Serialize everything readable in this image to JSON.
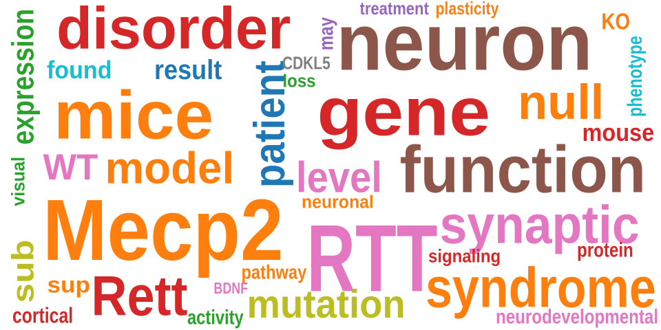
{
  "words": [
    {
      "id": "disorder",
      "text": "disorder",
      "color": "#d62728"
    },
    {
      "id": "neuron",
      "text": "neuron",
      "color": "#8c564b"
    },
    {
      "id": "mice",
      "text": "mice",
      "color": "#ff7f0e"
    },
    {
      "id": "gene",
      "text": "gene",
      "color": "#d62728"
    },
    {
      "id": "function",
      "text": "function",
      "color": "#8c564b"
    },
    {
      "id": "mecp2",
      "text": "Mecp2",
      "color": "#ff7f0e"
    },
    {
      "id": "rtt",
      "text": "RTT",
      "color": "#e377c2"
    },
    {
      "id": "synaptic",
      "text": "synaptic",
      "color": "#e377c2"
    },
    {
      "id": "syndrome",
      "text": "syndrome",
      "color": "#ff7f0e"
    },
    {
      "id": "rett",
      "text": "Rett",
      "color": "#d62728"
    },
    {
      "id": "mutation",
      "text": "mutation",
      "color": "#bcbd22"
    },
    {
      "id": "model",
      "text": "model",
      "color": "#ff7f0e"
    },
    {
      "id": "null",
      "text": "null",
      "color": "#ff7f0e"
    },
    {
      "id": "patient",
      "text": "patient",
      "color": "#1f77b4"
    },
    {
      "id": "level",
      "text": "level",
      "color": "#e377c2"
    },
    {
      "id": "wt",
      "text": "WT",
      "color": "#e377c2"
    },
    {
      "id": "expression",
      "text": "expression",
      "color": "#2ca02c"
    },
    {
      "id": "found",
      "text": "found",
      "color": "#17becf"
    },
    {
      "id": "result",
      "text": "result",
      "color": "#1f77b4"
    },
    {
      "id": "mouse",
      "text": "mouse",
      "color": "#d62728"
    },
    {
      "id": "ko",
      "text": "KO",
      "color": "#ff7f0e"
    },
    {
      "id": "phenotype",
      "text": "phenotype",
      "color": "#17becf"
    },
    {
      "id": "treatment",
      "text": "treatment",
      "color": "#9467bd"
    },
    {
      "id": "plasticity",
      "text": "plasticity",
      "color": "#ff7f0e"
    },
    {
      "id": "may",
      "text": "may",
      "color": "#9467bd"
    },
    {
      "id": "cdkl5",
      "text": "CDKL5",
      "color": "#7f7f7f"
    },
    {
      "id": "loss",
      "text": "loss",
      "color": "#2ca02c"
    },
    {
      "id": "visual",
      "text": "visual",
      "color": "#2ca02c"
    },
    {
      "id": "neuronal",
      "text": "neuronal",
      "color": "#ff7f0e"
    },
    {
      "id": "sub",
      "text": "sub",
      "color": "#bcbd22"
    },
    {
      "id": "sup",
      "text": "sup",
      "color": "#ff7f0e"
    },
    {
      "id": "cortical",
      "text": "cortical",
      "color": "#d62728"
    },
    {
      "id": "activity",
      "text": "activity",
      "color": "#2ca02c"
    },
    {
      "id": "bdnf",
      "text": "BDNF",
      "color": "#e377c2"
    },
    {
      "id": "pathway",
      "text": "pathway",
      "color": "#ff7f0e"
    },
    {
      "id": "signaling",
      "text": "signaling",
      "color": "#d62728"
    },
    {
      "id": "protein",
      "text": "protein",
      "color": "#d62728"
    },
    {
      "id": "neurodevelopmental",
      "text": "neurodevelopmental",
      "color": "#e377c2"
    }
  ]
}
